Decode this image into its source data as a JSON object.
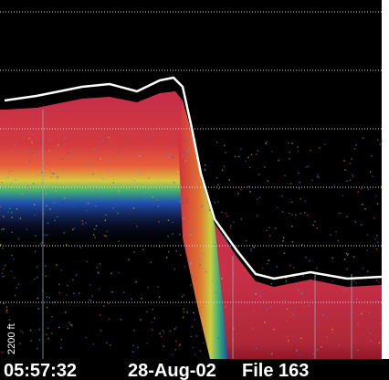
{
  "display": {
    "depth_label": "2200 ft"
  },
  "status_bar": {
    "time": "05:57:32",
    "date": "28-Aug-02",
    "file": "File 163"
  }
}
